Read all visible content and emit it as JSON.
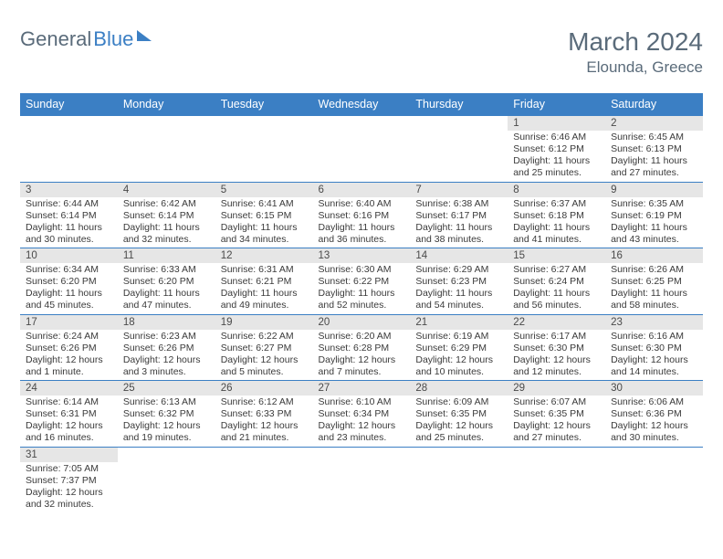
{
  "logo": {
    "part1": "General",
    "part2": "Blue"
  },
  "title": "March 2024",
  "location": "Elounda, Greece",
  "colors": {
    "header_bg": "#3b7fc4",
    "header_text": "#ffffff",
    "daynum_bg": "#e6e6e6",
    "text": "#3a3a3a",
    "logo_gray": "#5a6b7a",
    "logo_blue": "#3b7fc4",
    "border": "#3b7fc4"
  },
  "day_headers": [
    "Sunday",
    "Monday",
    "Tuesday",
    "Wednesday",
    "Thursday",
    "Friday",
    "Saturday"
  ],
  "weeks": [
    [
      null,
      null,
      null,
      null,
      null,
      {
        "n": "1",
        "sr": "Sunrise: 6:46 AM",
        "ss": "Sunset: 6:12 PM",
        "dl": "Daylight: 11 hours and 25 minutes."
      },
      {
        "n": "2",
        "sr": "Sunrise: 6:45 AM",
        "ss": "Sunset: 6:13 PM",
        "dl": "Daylight: 11 hours and 27 minutes."
      }
    ],
    [
      {
        "n": "3",
        "sr": "Sunrise: 6:44 AM",
        "ss": "Sunset: 6:14 PM",
        "dl": "Daylight: 11 hours and 30 minutes."
      },
      {
        "n": "4",
        "sr": "Sunrise: 6:42 AM",
        "ss": "Sunset: 6:14 PM",
        "dl": "Daylight: 11 hours and 32 minutes."
      },
      {
        "n": "5",
        "sr": "Sunrise: 6:41 AM",
        "ss": "Sunset: 6:15 PM",
        "dl": "Daylight: 11 hours and 34 minutes."
      },
      {
        "n": "6",
        "sr": "Sunrise: 6:40 AM",
        "ss": "Sunset: 6:16 PM",
        "dl": "Daylight: 11 hours and 36 minutes."
      },
      {
        "n": "7",
        "sr": "Sunrise: 6:38 AM",
        "ss": "Sunset: 6:17 PM",
        "dl": "Daylight: 11 hours and 38 minutes."
      },
      {
        "n": "8",
        "sr": "Sunrise: 6:37 AM",
        "ss": "Sunset: 6:18 PM",
        "dl": "Daylight: 11 hours and 41 minutes."
      },
      {
        "n": "9",
        "sr": "Sunrise: 6:35 AM",
        "ss": "Sunset: 6:19 PM",
        "dl": "Daylight: 11 hours and 43 minutes."
      }
    ],
    [
      {
        "n": "10",
        "sr": "Sunrise: 6:34 AM",
        "ss": "Sunset: 6:20 PM",
        "dl": "Daylight: 11 hours and 45 minutes."
      },
      {
        "n": "11",
        "sr": "Sunrise: 6:33 AM",
        "ss": "Sunset: 6:20 PM",
        "dl": "Daylight: 11 hours and 47 minutes."
      },
      {
        "n": "12",
        "sr": "Sunrise: 6:31 AM",
        "ss": "Sunset: 6:21 PM",
        "dl": "Daylight: 11 hours and 49 minutes."
      },
      {
        "n": "13",
        "sr": "Sunrise: 6:30 AM",
        "ss": "Sunset: 6:22 PM",
        "dl": "Daylight: 11 hours and 52 minutes."
      },
      {
        "n": "14",
        "sr": "Sunrise: 6:29 AM",
        "ss": "Sunset: 6:23 PM",
        "dl": "Daylight: 11 hours and 54 minutes."
      },
      {
        "n": "15",
        "sr": "Sunrise: 6:27 AM",
        "ss": "Sunset: 6:24 PM",
        "dl": "Daylight: 11 hours and 56 minutes."
      },
      {
        "n": "16",
        "sr": "Sunrise: 6:26 AM",
        "ss": "Sunset: 6:25 PM",
        "dl": "Daylight: 11 hours and 58 minutes."
      }
    ],
    [
      {
        "n": "17",
        "sr": "Sunrise: 6:24 AM",
        "ss": "Sunset: 6:26 PM",
        "dl": "Daylight: 12 hours and 1 minute."
      },
      {
        "n": "18",
        "sr": "Sunrise: 6:23 AM",
        "ss": "Sunset: 6:26 PM",
        "dl": "Daylight: 12 hours and 3 minutes."
      },
      {
        "n": "19",
        "sr": "Sunrise: 6:22 AM",
        "ss": "Sunset: 6:27 PM",
        "dl": "Daylight: 12 hours and 5 minutes."
      },
      {
        "n": "20",
        "sr": "Sunrise: 6:20 AM",
        "ss": "Sunset: 6:28 PM",
        "dl": "Daylight: 12 hours and 7 minutes."
      },
      {
        "n": "21",
        "sr": "Sunrise: 6:19 AM",
        "ss": "Sunset: 6:29 PM",
        "dl": "Daylight: 12 hours and 10 minutes."
      },
      {
        "n": "22",
        "sr": "Sunrise: 6:17 AM",
        "ss": "Sunset: 6:30 PM",
        "dl": "Daylight: 12 hours and 12 minutes."
      },
      {
        "n": "23",
        "sr": "Sunrise: 6:16 AM",
        "ss": "Sunset: 6:30 PM",
        "dl": "Daylight: 12 hours and 14 minutes."
      }
    ],
    [
      {
        "n": "24",
        "sr": "Sunrise: 6:14 AM",
        "ss": "Sunset: 6:31 PM",
        "dl": "Daylight: 12 hours and 16 minutes."
      },
      {
        "n": "25",
        "sr": "Sunrise: 6:13 AM",
        "ss": "Sunset: 6:32 PM",
        "dl": "Daylight: 12 hours and 19 minutes."
      },
      {
        "n": "26",
        "sr": "Sunrise: 6:12 AM",
        "ss": "Sunset: 6:33 PM",
        "dl": "Daylight: 12 hours and 21 minutes."
      },
      {
        "n": "27",
        "sr": "Sunrise: 6:10 AM",
        "ss": "Sunset: 6:34 PM",
        "dl": "Daylight: 12 hours and 23 minutes."
      },
      {
        "n": "28",
        "sr": "Sunrise: 6:09 AM",
        "ss": "Sunset: 6:35 PM",
        "dl": "Daylight: 12 hours and 25 minutes."
      },
      {
        "n": "29",
        "sr": "Sunrise: 6:07 AM",
        "ss": "Sunset: 6:35 PM",
        "dl": "Daylight: 12 hours and 27 minutes."
      },
      {
        "n": "30",
        "sr": "Sunrise: 6:06 AM",
        "ss": "Sunset: 6:36 PM",
        "dl": "Daylight: 12 hours and 30 minutes."
      }
    ],
    [
      {
        "n": "31",
        "sr": "Sunrise: 7:05 AM",
        "ss": "Sunset: 7:37 PM",
        "dl": "Daylight: 12 hours and 32 minutes."
      },
      null,
      null,
      null,
      null,
      null,
      null
    ]
  ]
}
